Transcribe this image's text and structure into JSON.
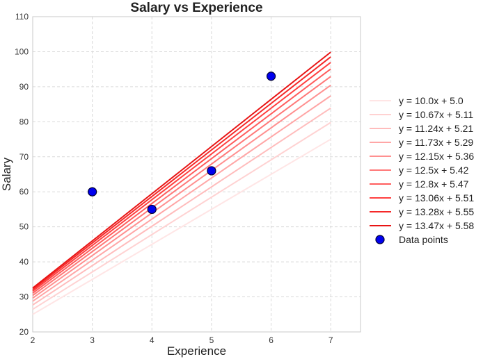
{
  "chart_data": {
    "type": "line",
    "title": "Salary vs Experience",
    "xlabel": "Experience",
    "ylabel": "Salary",
    "xlim": [
      2,
      7.5
    ],
    "ylim": [
      20,
      110
    ],
    "xticks": [
      2,
      3,
      4,
      5,
      6,
      7
    ],
    "yticks": [
      20,
      30,
      40,
      50,
      60,
      70,
      80,
      90,
      100,
      110
    ],
    "grid": true,
    "legend_position": "right",
    "lines_x_range": [
      2,
      7
    ],
    "lines": [
      {
        "name": "y = 10.0x + 5.0",
        "slope": 10.0,
        "intercept": 5.0,
        "color": "#ffe5e5"
      },
      {
        "name": "y = 10.67x + 5.11",
        "slope": 10.67,
        "intercept": 5.11,
        "color": "#ffd2d2"
      },
      {
        "name": "y = 11.24x + 5.21",
        "slope": 11.24,
        "intercept": 5.21,
        "color": "#ffbcbc"
      },
      {
        "name": "y = 11.73x + 5.29",
        "slope": 11.73,
        "intercept": 5.29,
        "color": "#ffa6a6"
      },
      {
        "name": "y = 12.15x + 5.36",
        "slope": 12.15,
        "intercept": 5.36,
        "color": "#ff9090"
      },
      {
        "name": "y = 12.5x + 5.42",
        "slope": 12.5,
        "intercept": 5.42,
        "color": "#ff7878"
      },
      {
        "name": "y = 12.8x + 5.47",
        "slope": 12.8,
        "intercept": 5.47,
        "color": "#ff5c5c"
      },
      {
        "name": "y = 13.06x + 5.51",
        "slope": 13.06,
        "intercept": 5.51,
        "color": "#ff4040"
      },
      {
        "name": "y = 13.28x + 5.55",
        "slope": 13.28,
        "intercept": 5.55,
        "color": "#f52828"
      },
      {
        "name": "y = 13.47x + 5.58",
        "slope": 13.47,
        "intercept": 5.58,
        "color": "#e81414"
      }
    ],
    "scatter": {
      "name": "Data points",
      "color": "#0000ee",
      "edge_color": "#000033",
      "x": [
        3,
        4,
        5,
        6
      ],
      "y": [
        60,
        55,
        66,
        93
      ]
    }
  }
}
